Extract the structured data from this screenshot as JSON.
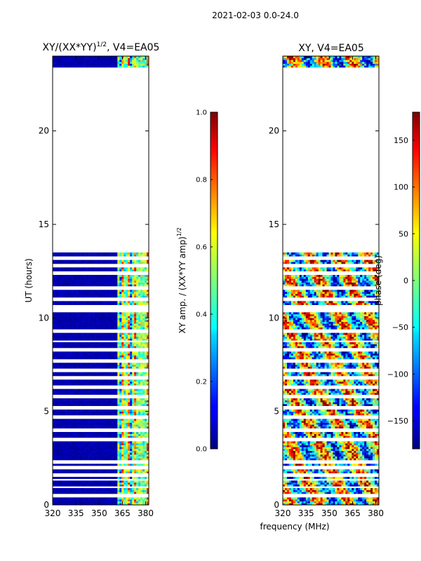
{
  "figure_title": "2021-02-03 0.0-24.0",
  "shared_xlabel": "frequency (MHz)",
  "chart_data": [
    {
      "type": "heatmap",
      "title_main": "XY/(XX*YY)",
      "title_sup": "1/2",
      "title_tail": ", V4=EA05",
      "ylabel": "UT (hours)",
      "xlim": [
        320,
        382
      ],
      "ylim": [
        0,
        24
      ],
      "xticks": [
        320,
        335,
        350,
        365,
        380
      ],
      "yticks": [
        0,
        5,
        10,
        15,
        20
      ],
      "data_ranges_hours": [
        [
          0,
          13.5
        ],
        [
          23.4,
          24
        ]
      ],
      "gap_rows_hours": [
        0.5,
        0.95,
        1.35,
        1.6,
        2.0,
        2.3,
        3.5,
        4.0,
        4.7,
        5.2,
        5.8,
        6.3,
        6.8,
        7.2,
        7.7,
        8.3,
        8.75,
        9.3,
        10.4,
        10.6,
        11.0,
        11.6,
        12.4,
        12.8,
        13.2
      ],
      "colorbar": {
        "label_main": "XY amp. / (XX*YY amp)",
        "label_sup": "1/2",
        "range": [
          0.0,
          1.0
        ],
        "ticks": [
          "0.0",
          "0.2",
          "0.4",
          "0.6",
          "0.8",
          "1.0"
        ]
      }
    },
    {
      "type": "heatmap",
      "title": "XY, V4=EA05",
      "xlim": [
        320,
        382
      ],
      "ylim": [
        0,
        24
      ],
      "xticks": [
        320,
        335,
        350,
        365,
        380
      ],
      "yticks": [
        0,
        5,
        10,
        15,
        20
      ],
      "data_ranges_hours": [
        [
          0,
          13.5
        ],
        [
          23.4,
          24
        ]
      ],
      "gap_rows_hours": [
        0.5,
        0.95,
        1.35,
        1.6,
        2.0,
        2.3,
        3.5,
        4.0,
        4.7,
        5.2,
        5.8,
        6.3,
        6.8,
        7.2,
        7.7,
        8.3,
        8.75,
        9.3,
        10.4,
        10.6,
        11.0,
        11.6,
        12.4,
        12.8,
        13.2
      ],
      "colorbar": {
        "label": "phase (deg)",
        "range": [
          -180,
          180
        ],
        "ticks": [
          "150",
          "100",
          "50",
          "0",
          "−50",
          "−100",
          "−150"
        ],
        "tick_values": [
          150,
          100,
          50,
          0,
          -50,
          -100,
          -150
        ]
      }
    }
  ]
}
